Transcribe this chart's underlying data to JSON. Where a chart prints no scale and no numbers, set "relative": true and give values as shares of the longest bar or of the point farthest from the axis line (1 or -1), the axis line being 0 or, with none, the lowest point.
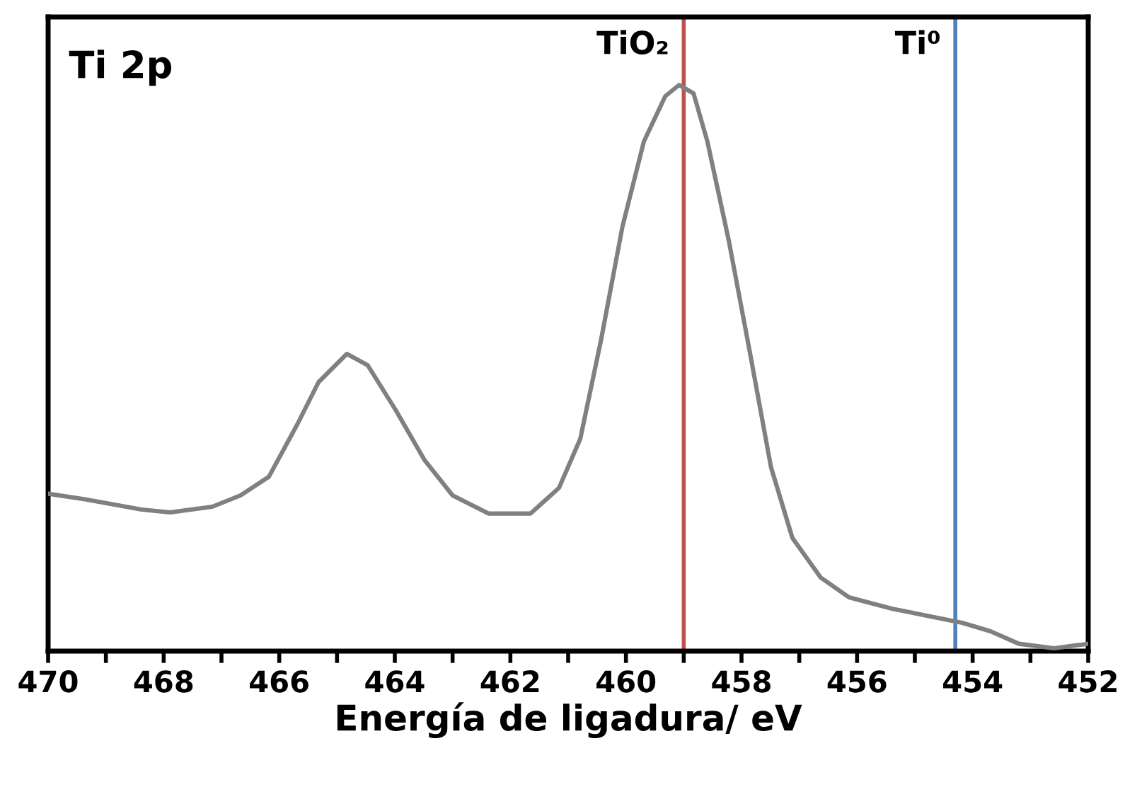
{
  "chart_data": {
    "type": "line",
    "relative": true,
    "xlabel": "Energía de ligadura/ eV",
    "annotations": [
      "Ti 2p"
    ],
    "xlim": [
      470,
      452
    ],
    "xticks": [
      470,
      {
        "value": 469,
        "label": null
      },
      468,
      {
        "value": 467,
        "label": null
      },
      466,
      {
        "value": 465,
        "label": null
      },
      464,
      {
        "value": 463,
        "label": null
      },
      462,
      {
        "value": 461,
        "label": null
      },
      460,
      {
        "value": 459,
        "label": null
      },
      458,
      {
        "value": 457,
        "label": null
      },
      456,
      {
        "value": 455,
        "label": null
      },
      454,
      {
        "value": 453,
        "label": null
      },
      452
    ],
    "grid": false,
    "legend": false,
    "marker": "none",
    "line_style": "solid",
    "x": [
      470.0,
      469.36,
      468.38,
      467.89,
      467.16,
      466.67,
      466.18,
      465.69,
      465.32,
      464.83,
      464.47,
      463.98,
      463.49,
      463.0,
      462.38,
      461.65,
      461.16,
      460.79,
      460.43,
      460.06,
      459.69,
      459.32,
      459.08,
      458.83,
      458.59,
      458.22,
      457.85,
      457.49,
      457.12,
      456.63,
      456.14,
      455.4,
      454.67,
      454.18,
      453.69,
      453.2,
      452.59,
      452.0
    ],
    "series": [
      {
        "color": "#808080",
        "values": [
          0.278,
          0.268,
          0.25,
          0.245,
          0.255,
          0.275,
          0.308,
          0.4,
          0.475,
          0.525,
          0.505,
          0.425,
          0.338,
          0.275,
          0.243,
          0.243,
          0.288,
          0.375,
          0.55,
          0.75,
          0.9,
          0.98,
          1.0,
          0.985,
          0.9,
          0.725,
          0.525,
          0.325,
          0.2,
          0.13,
          0.095,
          0.075,
          0.06,
          0.05,
          0.035,
          0.013,
          0.005,
          0.013
        ]
      }
    ],
    "ref_lines": [
      {
        "axis": "x",
        "value": 459.0,
        "label": "TiO₂",
        "color": "#c0504d"
      },
      {
        "axis": "x",
        "value": 454.3,
        "label": "Ti⁰",
        "color": "#4f81bd"
      }
    ]
  }
}
